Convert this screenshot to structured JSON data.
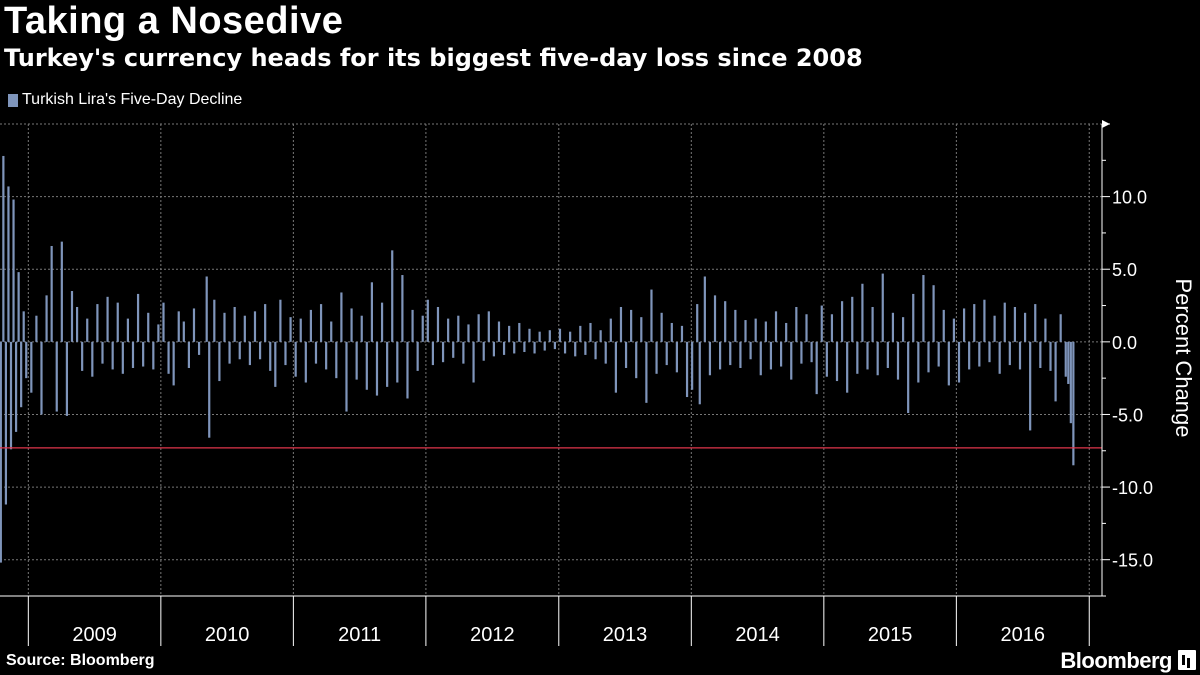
{
  "header": {
    "title": "Taking a Nosedive",
    "subtitle": "Turkey's currency heads for its biggest five-day loss since 2008"
  },
  "footer": {
    "source": "Source: Bloomberg",
    "brand": "Bloomberg"
  },
  "colors": {
    "series": "#7f95bb",
    "reference_line": "#e0354a",
    "grid": "#777777",
    "background": "#000000"
  },
  "chart_data": {
    "type": "bar",
    "title": "Taking a Nosedive",
    "subtitle": "Turkey's currency heads for its biggest five-day loss since 2008",
    "ylabel": "Percent Change",
    "xlabel": "",
    "ylim": [
      -17.5,
      15
    ],
    "yticks": [
      10.0,
      5.0,
      0.0,
      -5.0,
      -10.0,
      -15.0
    ],
    "ytick_labels": [
      "10.0",
      "5.0",
      "0.0",
      "-5.0",
      "-10.0",
      "-15.0"
    ],
    "x_range": [
      "2008-10-15",
      "2016-11-20"
    ],
    "year_boundaries": [
      "2009-01-01",
      "2010-01-01",
      "2011-01-01",
      "2012-01-01",
      "2013-01-01",
      "2014-01-01",
      "2015-01-01",
      "2016-01-01",
      "2017-01-01"
    ],
    "year_labels": [
      "2009",
      "2010",
      "2011",
      "2012",
      "2013",
      "2014",
      "2015",
      "2016"
    ],
    "legend": {
      "position": "top-left",
      "entries": [
        "Turkish Lira's Five-Day Decline"
      ]
    },
    "grid": true,
    "reference_line": {
      "y": -7.3
    },
    "series": [
      {
        "name": "Turkish Lira's Five-Day Decline",
        "points": [
          [
            "2008-10-17",
            -15.2
          ],
          [
            "2008-10-24",
            12.8
          ],
          [
            "2008-10-31",
            -11.2
          ],
          [
            "2008-11-07",
            10.7
          ],
          [
            "2008-11-14",
            -7.4
          ],
          [
            "2008-11-21",
            9.8
          ],
          [
            "2008-11-28",
            -6.2
          ],
          [
            "2008-12-05",
            4.8
          ],
          [
            "2008-12-12",
            -4.5
          ],
          [
            "2008-12-19",
            2.1
          ],
          [
            "2008-12-26",
            -2.5
          ],
          [
            "2009-01-09",
            -3.5
          ],
          [
            "2009-01-23",
            1.8
          ],
          [
            "2009-02-06",
            -5.0
          ],
          [
            "2009-02-20",
            3.2
          ],
          [
            "2009-03-06",
            6.6
          ],
          [
            "2009-03-20",
            -4.8
          ],
          [
            "2009-04-03",
            6.9
          ],
          [
            "2009-04-17",
            -5.1
          ],
          [
            "2009-05-01",
            3.5
          ],
          [
            "2009-05-15",
            2.4
          ],
          [
            "2009-05-29",
            -2.0
          ],
          [
            "2009-06-12",
            1.6
          ],
          [
            "2009-06-26",
            -2.4
          ],
          [
            "2009-07-10",
            2.6
          ],
          [
            "2009-07-24",
            -1.5
          ],
          [
            "2009-08-07",
            3.1
          ],
          [
            "2009-08-21",
            -1.9
          ],
          [
            "2009-09-04",
            2.7
          ],
          [
            "2009-09-18",
            -2.2
          ],
          [
            "2009-10-02",
            1.6
          ],
          [
            "2009-10-16",
            -1.8
          ],
          [
            "2009-10-30",
            3.3
          ],
          [
            "2009-11-13",
            -1.7
          ],
          [
            "2009-11-27",
            2.0
          ],
          [
            "2009-12-11",
            -1.9
          ],
          [
            "2009-12-25",
            1.2
          ],
          [
            "2010-01-08",
            2.7
          ],
          [
            "2010-01-22",
            -2.2
          ],
          [
            "2010-02-05",
            -3.0
          ],
          [
            "2010-02-19",
            2.1
          ],
          [
            "2010-03-05",
            1.4
          ],
          [
            "2010-03-19",
            -1.8
          ],
          [
            "2010-04-02",
            2.3
          ],
          [
            "2010-04-16",
            -0.9
          ],
          [
            "2010-05-07",
            4.5
          ],
          [
            "2010-05-14",
            -6.6
          ],
          [
            "2010-05-28",
            2.9
          ],
          [
            "2010-06-11",
            -2.7
          ],
          [
            "2010-06-25",
            2.0
          ],
          [
            "2010-07-09",
            -1.5
          ],
          [
            "2010-07-23",
            2.4
          ],
          [
            "2010-08-06",
            -1.2
          ],
          [
            "2010-08-20",
            1.8
          ],
          [
            "2010-09-03",
            -1.6
          ],
          [
            "2010-09-17",
            2.1
          ],
          [
            "2010-10-01",
            -1.2
          ],
          [
            "2010-10-15",
            2.6
          ],
          [
            "2010-10-29",
            -2.0
          ],
          [
            "2010-11-12",
            -3.1
          ],
          [
            "2010-11-26",
            2.9
          ],
          [
            "2010-12-10",
            -1.6
          ],
          [
            "2010-12-24",
            1.7
          ],
          [
            "2011-01-07",
            -2.4
          ],
          [
            "2011-01-21",
            1.6
          ],
          [
            "2011-02-04",
            -2.8
          ],
          [
            "2011-02-18",
            2.2
          ],
          [
            "2011-03-04",
            -1.5
          ],
          [
            "2011-03-18",
            2.6
          ],
          [
            "2011-04-01",
            -1.9
          ],
          [
            "2011-04-15",
            1.4
          ],
          [
            "2011-04-29",
            -2.5
          ],
          [
            "2011-05-13",
            3.4
          ],
          [
            "2011-05-27",
            -4.8
          ],
          [
            "2011-06-10",
            2.3
          ],
          [
            "2011-06-24",
            -2.6
          ],
          [
            "2011-07-08",
            1.8
          ],
          [
            "2011-07-22",
            -3.3
          ],
          [
            "2011-08-05",
            4.1
          ],
          [
            "2011-08-19",
            -3.7
          ],
          [
            "2011-09-02",
            2.7
          ],
          [
            "2011-09-16",
            -3.1
          ],
          [
            "2011-09-30",
            6.3
          ],
          [
            "2011-10-14",
            -2.8
          ],
          [
            "2011-10-28",
            4.6
          ],
          [
            "2011-11-11",
            -3.9
          ],
          [
            "2011-11-25",
            2.2
          ],
          [
            "2011-12-09",
            -2.0
          ],
          [
            "2011-12-23",
            1.8
          ],
          [
            "2012-01-06",
            2.9
          ],
          [
            "2012-01-20",
            -1.6
          ],
          [
            "2012-02-03",
            2.4
          ],
          [
            "2012-02-17",
            -1.4
          ],
          [
            "2012-03-02",
            1.6
          ],
          [
            "2012-03-16",
            -1.1
          ],
          [
            "2012-03-30",
            1.8
          ],
          [
            "2012-04-13",
            -1.5
          ],
          [
            "2012-04-27",
            1.2
          ],
          [
            "2012-05-11",
            -2.8
          ],
          [
            "2012-05-25",
            1.9
          ],
          [
            "2012-06-08",
            -1.3
          ],
          [
            "2012-06-22",
            2.1
          ],
          [
            "2012-07-06",
            -1.0
          ],
          [
            "2012-07-20",
            1.4
          ],
          [
            "2012-08-03",
            -0.9
          ],
          [
            "2012-08-17",
            1.1
          ],
          [
            "2012-08-31",
            -0.8
          ],
          [
            "2012-09-14",
            1.3
          ],
          [
            "2012-09-28",
            -0.7
          ],
          [
            "2012-10-12",
            0.9
          ],
          [
            "2012-10-26",
            -0.8
          ],
          [
            "2012-11-09",
            0.7
          ],
          [
            "2012-11-23",
            -0.6
          ],
          [
            "2012-12-07",
            0.8
          ],
          [
            "2012-12-21",
            -0.5
          ],
          [
            "2013-01-04",
            0.9
          ],
          [
            "2013-01-18",
            -0.8
          ],
          [
            "2013-02-01",
            0.7
          ],
          [
            "2013-02-15",
            -1.0
          ],
          [
            "2013-03-01",
            1.1
          ],
          [
            "2013-03-15",
            -0.9
          ],
          [
            "2013-03-29",
            1.3
          ],
          [
            "2013-04-12",
            -1.2
          ],
          [
            "2013-04-26",
            0.8
          ],
          [
            "2013-05-10",
            -1.5
          ],
          [
            "2013-05-24",
            1.6
          ],
          [
            "2013-06-07",
            -3.5
          ],
          [
            "2013-06-21",
            2.4
          ],
          [
            "2013-07-05",
            -1.8
          ],
          [
            "2013-07-19",
            2.2
          ],
          [
            "2013-08-02",
            -2.5
          ],
          [
            "2013-08-16",
            1.7
          ],
          [
            "2013-08-30",
            -4.2
          ],
          [
            "2013-09-13",
            3.6
          ],
          [
            "2013-09-27",
            -2.2
          ],
          [
            "2013-10-11",
            2.0
          ],
          [
            "2013-10-25",
            -1.6
          ],
          [
            "2013-11-08",
            1.3
          ],
          [
            "2013-11-22",
            -2.1
          ],
          [
            "2013-12-06",
            1.1
          ],
          [
            "2013-12-20",
            -3.8
          ],
          [
            "2014-01-03",
            -3.3
          ],
          [
            "2014-01-17",
            2.6
          ],
          [
            "2014-01-24",
            -4.3
          ],
          [
            "2014-02-07",
            4.5
          ],
          [
            "2014-02-21",
            -2.3
          ],
          [
            "2014-03-07",
            3.2
          ],
          [
            "2014-03-21",
            -1.9
          ],
          [
            "2014-04-04",
            2.8
          ],
          [
            "2014-04-18",
            -1.6
          ],
          [
            "2014-05-02",
            2.2
          ],
          [
            "2014-05-16",
            -1.8
          ],
          [
            "2014-05-30",
            1.5
          ],
          [
            "2014-06-13",
            -1.2
          ],
          [
            "2014-06-27",
            1.6
          ],
          [
            "2014-07-11",
            -2.3
          ],
          [
            "2014-07-25",
            1.4
          ],
          [
            "2014-08-08",
            -1.9
          ],
          [
            "2014-08-22",
            2.1
          ],
          [
            "2014-09-05",
            -1.7
          ],
          [
            "2014-09-19",
            1.3
          ],
          [
            "2014-10-03",
            -2.6
          ],
          [
            "2014-10-17",
            2.4
          ],
          [
            "2014-10-31",
            -1.5
          ],
          [
            "2014-11-14",
            1.9
          ],
          [
            "2014-11-28",
            -1.4
          ],
          [
            "2014-12-12",
            -3.6
          ],
          [
            "2014-12-26",
            2.5
          ],
          [
            "2015-01-09",
            -2.4
          ],
          [
            "2015-01-23",
            1.9
          ],
          [
            "2015-02-06",
            -2.7
          ],
          [
            "2015-02-20",
            2.8
          ],
          [
            "2015-03-06",
            -3.5
          ],
          [
            "2015-03-20",
            3.1
          ],
          [
            "2015-04-03",
            -2.2
          ],
          [
            "2015-04-17",
            4.0
          ],
          [
            "2015-05-01",
            -1.9
          ],
          [
            "2015-05-15",
            2.4
          ],
          [
            "2015-05-29",
            -2.3
          ],
          [
            "2015-06-12",
            4.7
          ],
          [
            "2015-06-26",
            -1.8
          ],
          [
            "2015-07-10",
            2.0
          ],
          [
            "2015-07-24",
            -2.6
          ],
          [
            "2015-08-07",
            1.7
          ],
          [
            "2015-08-21",
            -4.9
          ],
          [
            "2015-09-04",
            3.3
          ],
          [
            "2015-09-18",
            -2.8
          ],
          [
            "2015-10-02",
            4.6
          ],
          [
            "2015-10-16",
            -2.1
          ],
          [
            "2015-10-30",
            3.9
          ],
          [
            "2015-11-13",
            -1.7
          ],
          [
            "2015-11-27",
            2.2
          ],
          [
            "2015-12-11",
            -3.0
          ],
          [
            "2015-12-25",
            1.6
          ],
          [
            "2016-01-08",
            -2.8
          ],
          [
            "2016-01-22",
            2.3
          ],
          [
            "2016-02-05",
            -1.9
          ],
          [
            "2016-02-19",
            2.6
          ],
          [
            "2016-03-04",
            -1.7
          ],
          [
            "2016-03-18",
            2.9
          ],
          [
            "2016-04-01",
            -1.4
          ],
          [
            "2016-04-15",
            1.8
          ],
          [
            "2016-04-29",
            -2.2
          ],
          [
            "2016-05-13",
            2.7
          ],
          [
            "2016-05-27",
            -1.6
          ],
          [
            "2016-06-10",
            2.4
          ],
          [
            "2016-06-24",
            -1.9
          ],
          [
            "2016-07-08",
            2.0
          ],
          [
            "2016-07-22",
            -6.1
          ],
          [
            "2016-08-05",
            2.6
          ],
          [
            "2016-08-19",
            -1.8
          ],
          [
            "2016-09-02",
            1.6
          ],
          [
            "2016-09-16",
            -2.0
          ],
          [
            "2016-09-30",
            -4.1
          ],
          [
            "2016-10-14",
            1.9
          ],
          [
            "2016-10-28",
            -2.4
          ],
          [
            "2016-11-04",
            -2.9
          ],
          [
            "2016-11-11",
            -5.6
          ],
          [
            "2016-11-18",
            -8.5
          ]
        ]
      }
    ]
  }
}
